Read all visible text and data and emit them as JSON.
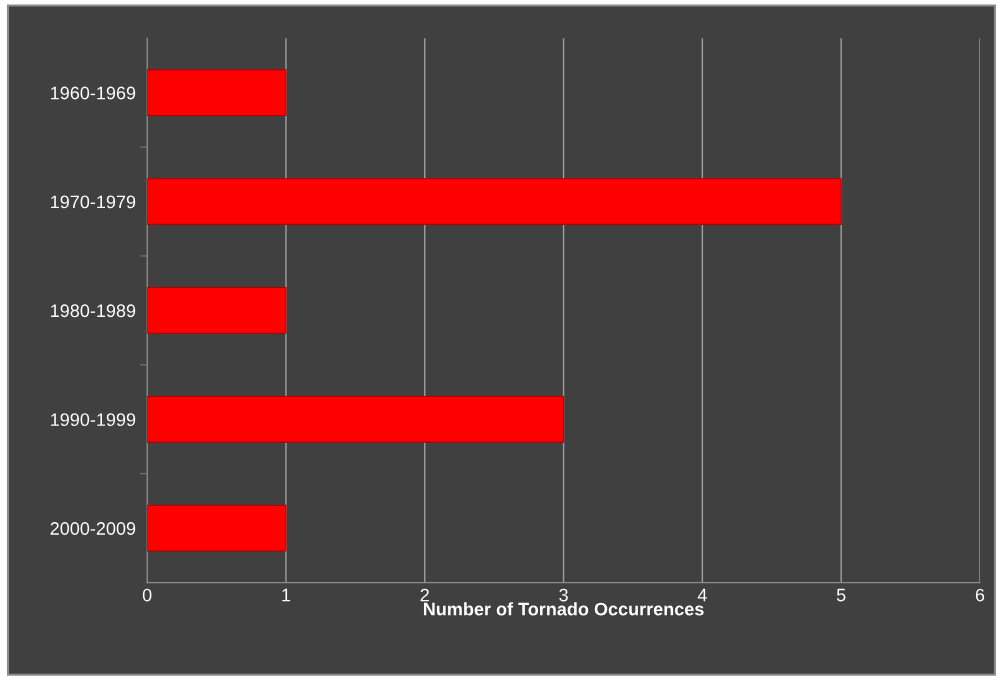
{
  "chart_data": {
    "type": "bar",
    "orientation": "horizontal",
    "xlabel": "Number of Tornado Occurrences",
    "categories": [
      "1960-1969",
      "1970-1979",
      "1980-1989",
      "1990-1999",
      "2000-2009"
    ],
    "values": [
      1,
      5,
      1,
      3,
      1
    ],
    "color": "#ff0000",
    "xlim": [
      0,
      6
    ],
    "xticks": [
      0,
      1,
      2,
      3,
      4,
      5,
      6
    ],
    "grid": "x"
  }
}
